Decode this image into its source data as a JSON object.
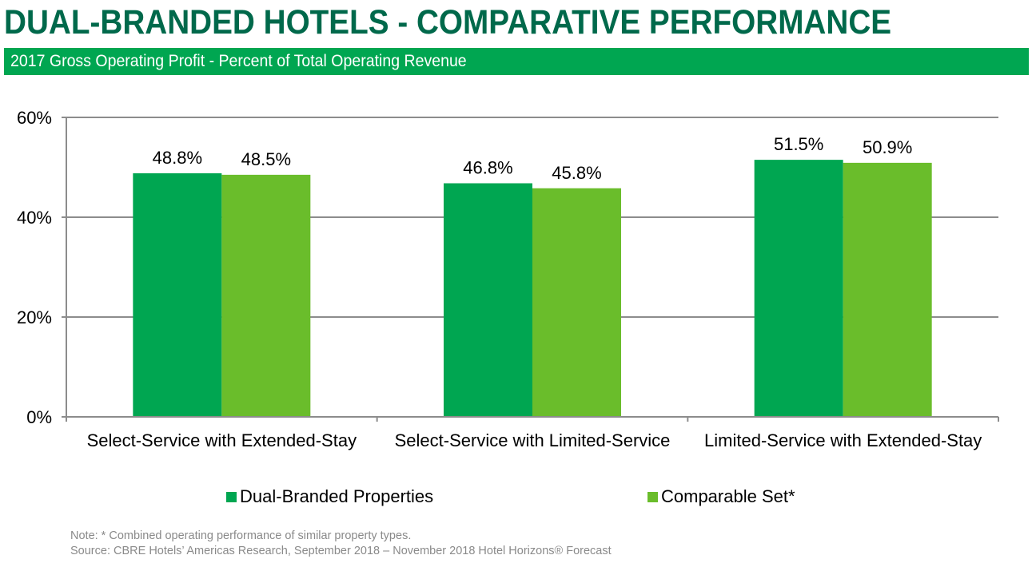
{
  "title": "DUAL-BRANDED HOTELS - COMPARATIVE PERFORMANCE",
  "subtitle": "2017 Gross Operating Profit - Percent of Total Operating Revenue",
  "colors": {
    "title": "#00694B",
    "banner": "#00A651",
    "dual": "#00A651",
    "comparable": "#6ABD2B",
    "grid": "#8c8c8c"
  },
  "chart_data": {
    "type": "bar",
    "categories": [
      "Select-Service with Extended-Stay",
      "Select-Service with Limited-Service",
      "Limited-Service with Extended-Stay"
    ],
    "series": [
      {
        "name": "Dual-Branded Properties",
        "values": [
          48.8,
          46.8,
          51.5
        ],
        "labels": [
          "48.8%",
          "46.8%",
          "51.5%"
        ],
        "color": "#00A651"
      },
      {
        "name": "Comparable Set*",
        "values": [
          48.5,
          45.8,
          50.9
        ],
        "labels": [
          "48.5%",
          "45.8%",
          "50.9%"
        ],
        "color": "#6ABD2B"
      }
    ],
    "ylim": [
      0,
      60
    ],
    "yticks": [
      0,
      20,
      40,
      60
    ],
    "ytick_labels": [
      "0%",
      "20%",
      "40%",
      "60%"
    ],
    "grid": true,
    "legend_position": "bottom"
  },
  "notes": {
    "note": "Note: * Combined operating performance of similar property types.",
    "source": "Source: CBRE Hotels’ Americas Research, September 2018 – November 2018 Hotel Horizons® Forecast"
  }
}
